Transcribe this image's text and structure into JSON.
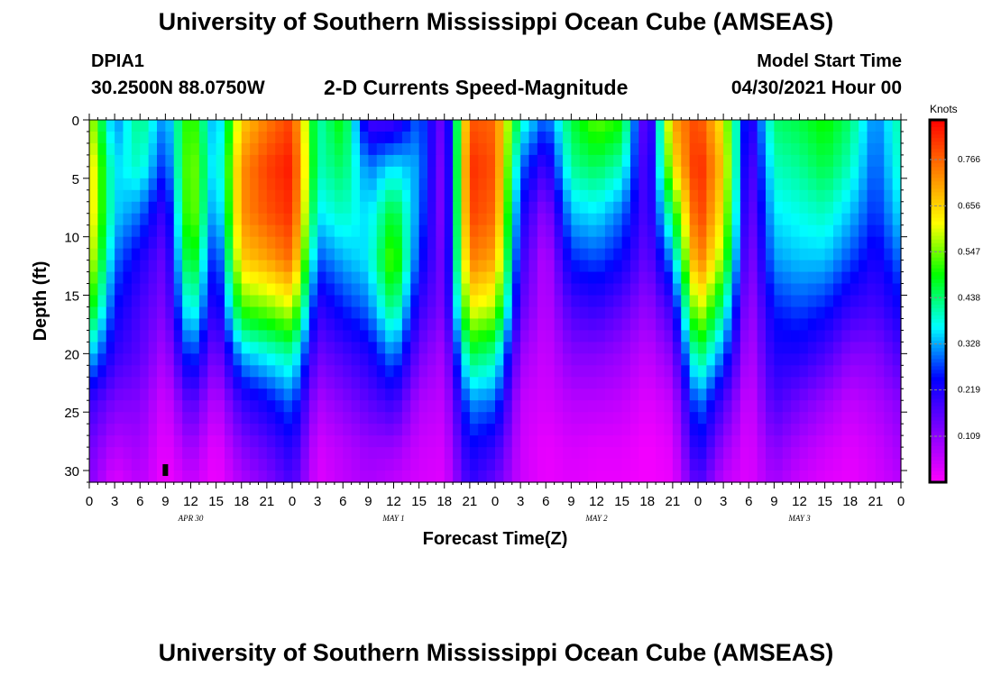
{
  "header": {
    "title": "University of Southern Mississippi Ocean Cube (AMSEAS)",
    "station_id": "DPIA1",
    "station_coords": "30.2500N  88.0750W",
    "chart_title": "2-D Currents Speed-Magnitude",
    "model_start_label": "Model Start Time",
    "model_start_value": "04/30/2021 Hour 00"
  },
  "footer": {
    "title": "University of Southern Mississippi Ocean Cube (AMSEAS)"
  },
  "chart_data": {
    "type": "heatmap",
    "title": "2-D Currents Speed-Magnitude",
    "xlabel": "Forecast Time(Z)",
    "ylabel": "Depth (ft)",
    "colorbar_label": "Knots",
    "x_hours": [
      0,
      96
    ],
    "ylim": [
      31,
      0
    ],
    "y_ticks": [
      0,
      5,
      10,
      15,
      20,
      25,
      30
    ],
    "x_tick_labels": [
      "0",
      "3",
      "6",
      "9",
      "12",
      "15",
      "18",
      "21",
      "0",
      "3",
      "6",
      "9",
      "12",
      "15",
      "18",
      "21",
      "0",
      "3",
      "6",
      "9",
      "12",
      "15",
      "18",
      "21",
      "0",
      "3",
      "6",
      "9",
      "12",
      "15",
      "18",
      "21",
      "0"
    ],
    "date_labels": [
      {
        "hour": 12,
        "label": "APR 30"
      },
      {
        "hour": 36,
        "label": "MAY 1"
      },
      {
        "hour": 60,
        "label": "MAY 2"
      },
      {
        "hour": 84,
        "label": "MAY 3"
      }
    ],
    "colorbar": {
      "min": 0,
      "max": 0.86,
      "ticks": [
        0.109,
        0.219,
        0.328,
        0.438,
        0.547,
        0.656,
        0.766
      ],
      "colormap": [
        "#ff00ff",
        "#8000ff",
        "#0000ff",
        "#00ffff",
        "#00ff00",
        "#ffff00",
        "#ff8000",
        "#ff0000"
      ]
    },
    "depths": [
      0,
      4,
      8,
      12,
      16,
      20,
      24,
      28,
      31
    ],
    "hours": [
      0,
      3,
      6,
      9,
      12,
      15,
      18,
      21,
      24,
      27,
      30,
      33,
      36,
      39,
      42,
      45,
      48,
      51,
      54,
      57,
      60,
      63,
      66,
      69,
      72,
      75,
      78,
      81,
      84,
      87,
      90,
      93,
      96
    ],
    "speed_profiles": [
      [
        0.6,
        0.66,
        0.66,
        0.62,
        0.52,
        0.36,
        0.2,
        0.14,
        0.12
      ],
      [
        0.3,
        0.35,
        0.35,
        0.3,
        0.25,
        0.2,
        0.13,
        0.07,
        0.03
      ],
      [
        0.44,
        0.4,
        0.3,
        0.22,
        0.18,
        0.16,
        0.12,
        0.09,
        0.07
      ],
      [
        0.3,
        0.25,
        0.18,
        0.14,
        0.12,
        0.08,
        0.04,
        0.02,
        0.01
      ],
      [
        0.55,
        0.58,
        0.58,
        0.52,
        0.42,
        0.3,
        0.18,
        0.1,
        0.06
      ],
      [
        0.3,
        0.32,
        0.28,
        0.22,
        0.18,
        0.12,
        0.06,
        0.02,
        0.01
      ],
      [
        0.66,
        0.72,
        0.72,
        0.66,
        0.52,
        0.34,
        0.2,
        0.12,
        0.08
      ],
      [
        0.74,
        0.8,
        0.78,
        0.7,
        0.55,
        0.38,
        0.24,
        0.16,
        0.12
      ],
      [
        0.8,
        0.84,
        0.82,
        0.76,
        0.6,
        0.42,
        0.3,
        0.22,
        0.18
      ],
      [
        0.4,
        0.4,
        0.36,
        0.28,
        0.2,
        0.14,
        0.08,
        0.04,
        0.03
      ],
      [
        0.5,
        0.45,
        0.4,
        0.33,
        0.26,
        0.18,
        0.12,
        0.07,
        0.06
      ],
      [
        0.18,
        0.3,
        0.35,
        0.36,
        0.3,
        0.22,
        0.16,
        0.1,
        0.08
      ],
      [
        0.18,
        0.36,
        0.48,
        0.55,
        0.45,
        0.32,
        0.2,
        0.1,
        0.06
      ],
      [
        0.3,
        0.32,
        0.3,
        0.26,
        0.2,
        0.14,
        0.08,
        0.05,
        0.04
      ],
      [
        0.12,
        0.1,
        0.1,
        0.12,
        0.12,
        0.08,
        0.06,
        0.04,
        0.03
      ],
      [
        0.78,
        0.82,
        0.8,
        0.74,
        0.62,
        0.46,
        0.32,
        0.24,
        0.2
      ],
      [
        0.76,
        0.78,
        0.76,
        0.7,
        0.58,
        0.42,
        0.3,
        0.2,
        0.15
      ],
      [
        0.4,
        0.3,
        0.24,
        0.2,
        0.16,
        0.1,
        0.06,
        0.05,
        0.05
      ],
      [
        0.28,
        0.18,
        0.1,
        0.06,
        0.06,
        0.05,
        0.04,
        0.02,
        0.02
      ],
      [
        0.46,
        0.42,
        0.34,
        0.26,
        0.18,
        0.12,
        0.07,
        0.04,
        0.03
      ],
      [
        0.54,
        0.45,
        0.36,
        0.28,
        0.2,
        0.12,
        0.07,
        0.03,
        0.02
      ],
      [
        0.5,
        0.4,
        0.3,
        0.24,
        0.16,
        0.1,
        0.06,
        0.03,
        0.02
      ],
      [
        0.1,
        0.14,
        0.16,
        0.14,
        0.1,
        0.06,
        0.03,
        0.01,
        0.01
      ],
      [
        0.7,
        0.62,
        0.46,
        0.32,
        0.2,
        0.12,
        0.06,
        0.03,
        0.02
      ],
      [
        0.8,
        0.84,
        0.82,
        0.76,
        0.62,
        0.46,
        0.32,
        0.24,
        0.18
      ],
      [
        0.62,
        0.66,
        0.62,
        0.55,
        0.42,
        0.3,
        0.18,
        0.1,
        0.06
      ],
      [
        0.18,
        0.14,
        0.12,
        0.1,
        0.08,
        0.06,
        0.04,
        0.03,
        0.03
      ],
      [
        0.44,
        0.4,
        0.36,
        0.32,
        0.26,
        0.22,
        0.18,
        0.12,
        0.09
      ],
      [
        0.46,
        0.42,
        0.38,
        0.34,
        0.28,
        0.22,
        0.14,
        0.08,
        0.05
      ],
      [
        0.5,
        0.46,
        0.4,
        0.34,
        0.26,
        0.18,
        0.1,
        0.05,
        0.03
      ],
      [
        0.44,
        0.4,
        0.34,
        0.28,
        0.2,
        0.12,
        0.06,
        0.03,
        0.02
      ],
      [
        0.3,
        0.28,
        0.26,
        0.22,
        0.18,
        0.12,
        0.08,
        0.05,
        0.04
      ],
      [
        0.42,
        0.4,
        0.36,
        0.3,
        0.24,
        0.18,
        0.12,
        0.09,
        0.07
      ]
    ],
    "marker": {
      "hour": 9,
      "depth": 30
    }
  }
}
